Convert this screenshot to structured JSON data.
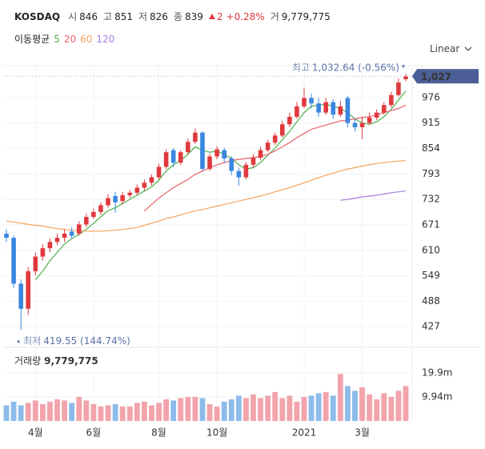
{
  "header": {
    "symbol": "KOSDAQ",
    "items": [
      {
        "label": "시",
        "value": "846"
      },
      {
        "label": "고",
        "value": "851"
      },
      {
        "label": "저",
        "value": "826"
      },
      {
        "label": "종",
        "value": "839"
      }
    ],
    "change": "2",
    "change_pct": "+0.28%",
    "volume_label": "거",
    "volume": "9,779,775"
  },
  "chart_data": [
    {
      "type": "candlestick",
      "legend_title": "이동평균",
      "scale_label": "Linear",
      "categories": [
        null,
        null,
        null,
        null,
        "4월",
        null,
        null,
        null,
        null,
        null,
        null,
        null,
        "6월",
        null,
        null,
        null,
        null,
        null,
        null,
        null,
        null,
        "8월",
        null,
        null,
        null,
        null,
        null,
        null,
        null,
        "10월",
        null,
        null,
        null,
        null,
        null,
        null,
        null,
        null,
        null,
        null,
        null,
        "2021",
        null,
        null,
        null,
        null,
        null,
        null,
        null,
        "3월",
        null,
        null,
        null,
        null,
        null,
        null
      ],
      "open": [
        650,
        640,
        530,
        470,
        560,
        595,
        615,
        630,
        640,
        655,
        650,
        672,
        690,
        702,
        718,
        740,
        728,
        742,
        748,
        760,
        772,
        785,
        810,
        850,
        820,
        845,
        870,
        892,
        805,
        835,
        850,
        830,
        800,
        785,
        815,
        832,
        850,
        868,
        885,
        912,
        930,
        955,
        975,
        962,
        940,
        965,
        935,
        975,
        915,
        905,
        915,
        928,
        940,
        958,
        982,
        1020
      ],
      "high": [
        660,
        645,
        540,
        570,
        605,
        625,
        638,
        650,
        660,
        665,
        680,
        698,
        710,
        725,
        745,
        750,
        750,
        755,
        768,
        780,
        792,
        818,
        852,
        855,
        850,
        878,
        902,
        895,
        842,
        860,
        856,
        835,
        808,
        822,
        840,
        858,
        875,
        892,
        920,
        940,
        965,
        1000,
        985,
        975,
        975,
        972,
        968,
        980,
        925,
        930,
        940,
        948,
        965,
        990,
        1022,
        1032.64
      ],
      "low": [
        630,
        520,
        419.55,
        455,
        550,
        585,
        605,
        622,
        630,
        638,
        645,
        665,
        685,
        695,
        712,
        700,
        720,
        735,
        742,
        752,
        765,
        780,
        805,
        810,
        815,
        840,
        865,
        800,
        800,
        828,
        820,
        790,
        765,
        780,
        808,
        826,
        845,
        862,
        880,
        905,
        925,
        950,
        950,
        930,
        935,
        925,
        930,
        905,
        895,
        876,
        910,
        922,
        935,
        952,
        978,
        1015
      ],
      "close": [
        640,
        530,
        470,
        560,
        595,
        615,
        630,
        640,
        650,
        645,
        672,
        690,
        702,
        718,
        735,
        725,
        742,
        748,
        760,
        772,
        785,
        810,
        845,
        820,
        845,
        870,
        892,
        805,
        835,
        852,
        830,
        800,
        785,
        815,
        832,
        850,
        868,
        885,
        912,
        930,
        955,
        975,
        962,
        940,
        965,
        935,
        955,
        915,
        905,
        915,
        928,
        940,
        958,
        982,
        1012,
        1027
      ],
      "up_color": "#e0393e",
      "down_color": "#3a86e0",
      "series": [
        {
          "name": "5",
          "color": "#4cb04c",
          "values": [
            null,
            null,
            null,
            null,
            540,
            560,
            585,
            605,
            625,
            638,
            648,
            660,
            675,
            690,
            705,
            712,
            722,
            732,
            742,
            752,
            762,
            778,
            800,
            815,
            825,
            840,
            858,
            850,
            845,
            848,
            840,
            830,
            815,
            805,
            808,
            820,
            838,
            855,
            875,
            895,
            918,
            940,
            955,
            958,
            960,
            955,
            950,
            940,
            925,
            915,
            912,
            918,
            930,
            948,
            970,
            992
          ]
        },
        {
          "name": "20",
          "color": "#e8626a",
          "values": [
            null,
            null,
            null,
            null,
            null,
            null,
            null,
            null,
            null,
            null,
            null,
            null,
            null,
            null,
            null,
            null,
            null,
            null,
            null,
            704,
            720,
            735,
            748,
            760,
            770,
            780,
            792,
            800,
            808,
            815,
            820,
            825,
            828,
            830,
            832,
            835,
            840,
            848,
            858,
            868,
            880,
            890,
            900,
            905,
            910,
            915,
            920,
            922,
            925,
            928,
            930,
            935,
            940,
            945,
            950,
            958
          ]
        },
        {
          "name": "60",
          "color": "#f5a35c",
          "values": [
            680,
            678,
            675,
            672,
            670,
            668,
            665,
            662,
            660,
            658,
            657,
            656,
            656,
            656,
            657,
            658,
            660,
            662,
            665,
            670,
            675,
            680,
            686,
            690,
            695,
            700,
            704,
            708,
            712,
            716,
            720,
            724,
            728,
            732,
            736,
            740,
            745,
            750,
            755,
            760,
            766,
            772,
            778,
            784,
            790,
            795,
            800,
            805,
            808,
            812,
            815,
            818,
            820,
            822,
            824,
            825
          ]
        },
        {
          "name": "120",
          "color": "#a77ee0",
          "values": [
            null,
            null,
            null,
            null,
            null,
            null,
            null,
            null,
            null,
            null,
            null,
            null,
            null,
            null,
            null,
            null,
            null,
            null,
            null,
            null,
            null,
            null,
            null,
            null,
            null,
            null,
            null,
            null,
            null,
            null,
            null,
            null,
            null,
            null,
            null,
            null,
            null,
            null,
            null,
            null,
            null,
            null,
            null,
            null,
            null,
            null,
            730,
            732,
            735,
            738,
            740,
            742,
            745,
            748,
            750,
            752
          ]
        }
      ],
      "ylim": [
        389,
        1041
      ],
      "yticks": [
        976,
        915,
        854,
        793,
        732,
        671,
        610,
        549,
        488,
        427
      ],
      "grid": true,
      "price_tag": {
        "value": 1027,
        "label": "1,027"
      },
      "annotations": [
        {
          "label": "최고",
          "text": "1,032.64 (-0.56%)"
        },
        {
          "label": "최저",
          "text": "419.55 (144.74%)"
        }
      ]
    },
    {
      "type": "bar",
      "title": "거래량",
      "title_value": "9,779,775",
      "values": [
        6500000,
        8000000,
        6500000,
        7500000,
        8500000,
        7000000,
        8000000,
        9000000,
        8500000,
        7500000,
        10000000,
        8500000,
        7000000,
        6000000,
        6500000,
        7000000,
        6000000,
        6000000,
        7500000,
        8000000,
        6500000,
        7500000,
        9000000,
        8500000,
        9500000,
        10000000,
        10000000,
        9500000,
        7000000,
        6000000,
        8000000,
        9000000,
        10500000,
        9500000,
        11000000,
        9500000,
        10500000,
        12000000,
        9500000,
        10500000,
        8000000,
        10000000,
        10500000,
        11500000,
        12000000,
        10500000,
        19500000,
        14500000,
        12500000,
        14000000,
        11000000,
        9000000,
        11500000,
        10000000,
        12500000,
        14500000
      ],
      "up_color": "#f2a3ab",
      "down_color": "#8dbbea",
      "ylim": [
        0,
        29200000
      ],
      "yticks": [
        {
          "value": 19900000,
          "label": "19.9m"
        },
        {
          "value": 9940000,
          "label": "9.94m"
        }
      ]
    }
  ]
}
